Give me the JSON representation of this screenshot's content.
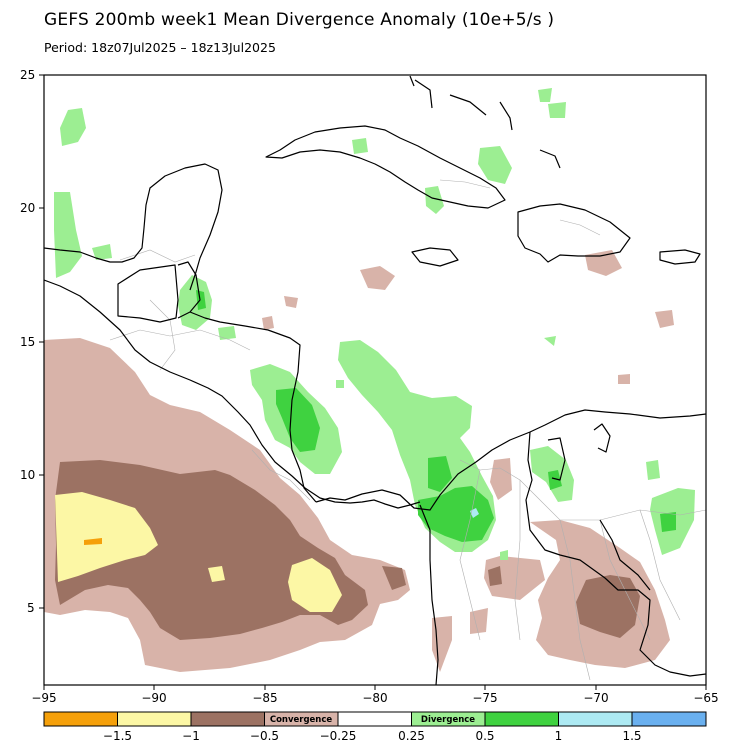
{
  "title": "GEFS 200mb week1 Mean Divergence Anomaly (10e+5/s )",
  "period": "Period: 18z07Jul2025 – 18z13Jul2025",
  "axes": {
    "lat_ticks": [
      "25",
      "20",
      "15",
      "10",
      "5"
    ],
    "lon_ticks": [
      "−95",
      "−90",
      "−85",
      "−80",
      "−75",
      "−70",
      "−65"
    ]
  },
  "colorbar": {
    "bins": [
      {
        "color": "#f5a00a"
      },
      {
        "color": "#fcf7a5"
      },
      {
        "color": "#9c7263"
      },
      {
        "color": "#d8b3a9",
        "inline_label": "Convergence"
      },
      {
        "color": "#ffffff"
      },
      {
        "color": "#9cee92",
        "inline_label": "Divergence"
      },
      {
        "color": "#3fd240"
      },
      {
        "color": "#adeaf3"
      },
      {
        "color": "#6ab0ef"
      }
    ],
    "tick_labels": [
      "−1.5",
      "−1",
      "−0.5",
      "−0.25",
      "0.25",
      "0.5",
      "1",
      "1.5"
    ]
  },
  "legend_colors": {
    "strong_convergence": "#9c7263",
    "weak_convergence": "#d8b3a9",
    "very_strong_convergence": "#fcf7a5",
    "extreme_convergence": "#f5a00a",
    "weak_divergence": "#9cee92",
    "divergence": "#3fd240",
    "strong_divergence": "#adeaf3"
  }
}
